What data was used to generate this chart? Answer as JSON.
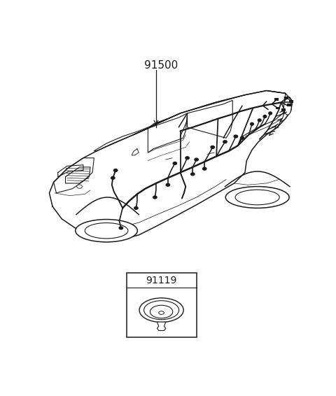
{
  "background_color": "#ffffff",
  "part_number_main": "91500",
  "part_number_sub": "91119",
  "line_color": "#1a1a1a",
  "fig_width": 4.8,
  "fig_height": 5.66,
  "dpi": 100
}
